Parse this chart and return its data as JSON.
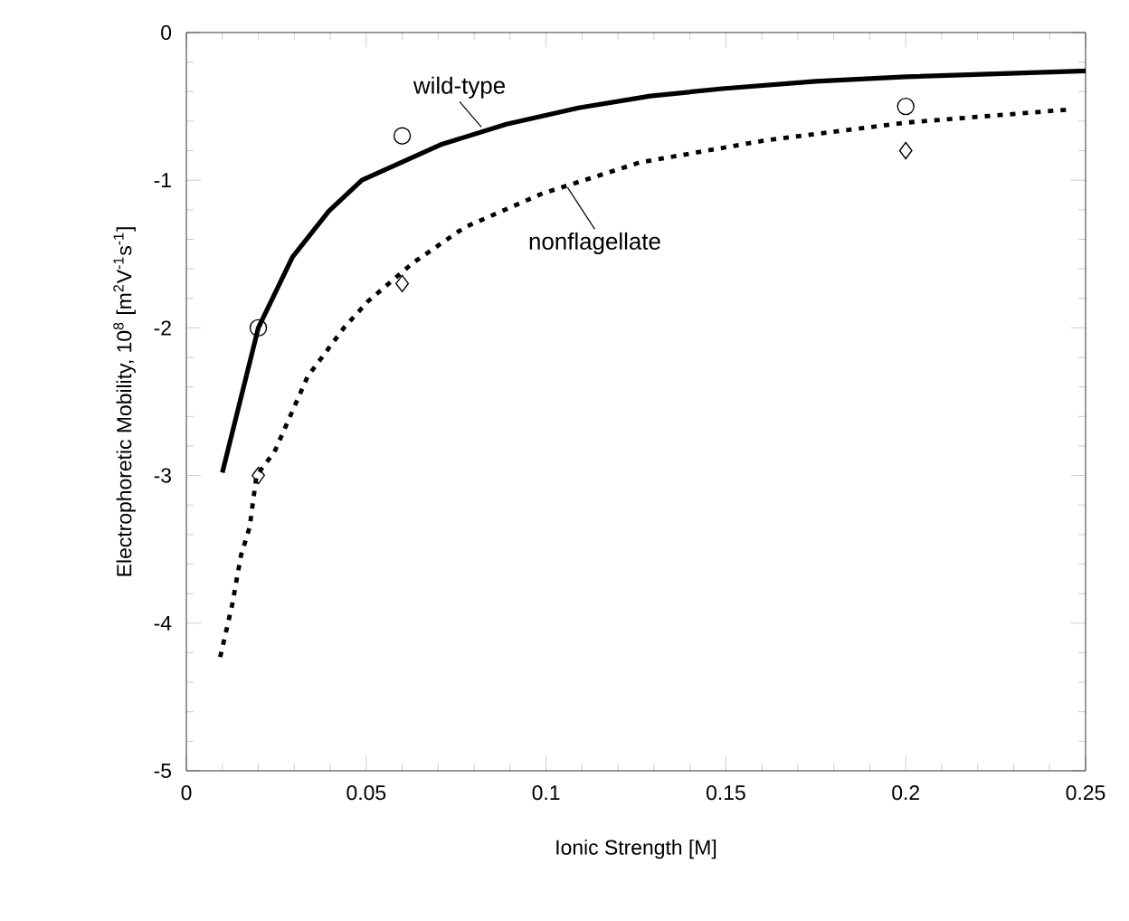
{
  "chart_data": {
    "type": "line",
    "xlabel": "Ionic Strength [M]",
    "ylabel": "Electrophoretic Mobility,  10$^{8}$ [m$^{2}$V$^{-1}$s$^{-1}$]",
    "xlim": [
      0,
      0.25
    ],
    "ylim": [
      -5,
      0
    ],
    "xticks": [
      0,
      0.05,
      0.1,
      0.15,
      0.2,
      0.25
    ],
    "yticks": [
      -5,
      -4,
      -3,
      -2,
      -1,
      0
    ],
    "series": [
      {
        "color": "#000000",
        "line_style": "solid",
        "marker": "none",
        "x": [
          0.01,
          0.02,
          0.0295,
          0.0396,
          0.0488,
          0.0706,
          0.089,
          0.109,
          0.129,
          0.149,
          0.175,
          0.2,
          0.25
        ],
        "values": [
          -2.98,
          -2.0,
          -1.52,
          -1.21,
          -1.0,
          -0.76,
          -0.62,
          -0.51,
          -0.43,
          -0.38,
          -0.33,
          -0.3,
          -0.26
        ]
      },
      {
        "color": "#000000",
        "line_style": "dotted",
        "marker": "none",
        "x": [
          0.0094,
          0.0127,
          0.0152,
          0.0176,
          0.0195,
          0.0245,
          0.0337,
          0.0438,
          0.0505,
          0.063,
          0.0773,
          0.099,
          0.126,
          0.161,
          0.2,
          0.246
        ],
        "values": [
          -4.23,
          -3.88,
          -3.54,
          -3.35,
          -3.0,
          -2.84,
          -2.33,
          -2.0,
          -1.82,
          -1.56,
          -1.32,
          -1.09,
          -0.88,
          -0.73,
          -0.61,
          -0.52
        ]
      },
      {
        "type": "scatter",
        "color": "#000000",
        "marker": "circle",
        "x": [
          0.02,
          0.06,
          0.2
        ],
        "values": [
          -2.0,
          -0.7,
          -0.5
        ]
      },
      {
        "type": "scatter",
        "color": "#000000",
        "marker": "diamond",
        "x": [
          0.02,
          0.06,
          0.2
        ],
        "values": [
          -3.0,
          -1.7,
          -0.8
        ]
      }
    ],
    "annotations": [
      {
        "text": "wild-type",
        "x": 0.082,
        "y": -0.64
      },
      {
        "text": "nonflagellate",
        "x": 0.106,
        "y": -1.05
      }
    ]
  }
}
